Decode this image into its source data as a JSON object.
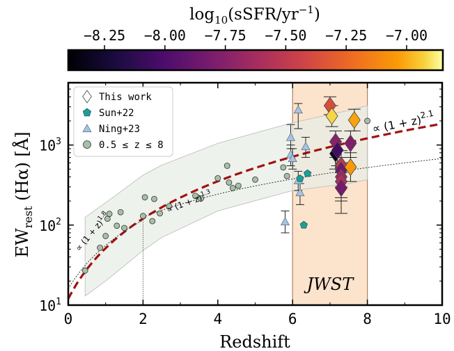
{
  "chart_data": {
    "type": "scatter",
    "xlabel": "Redshift",
    "ylabel": "EW",
    "ylabel_sub": "rest",
    "ylabel_tail": " (Hα) [Å]",
    "xlim": [
      0,
      10
    ],
    "ylim": [
      10,
      6000
    ],
    "yscale": "log",
    "x_ticks": [
      0,
      2,
      4,
      6,
      8,
      10
    ],
    "y_ticks": [
      {
        "base": "10",
        "exp": "1",
        "value": 10
      },
      {
        "base": "10",
        "exp": "2",
        "value": 100
      },
      {
        "base": "10",
        "exp": "3",
        "value": 1000
      }
    ],
    "colorbar": {
      "label_prefix": "log",
      "label_sub": "10",
      "label_mid": "(sSFR/yr",
      "label_sup": "−1",
      "label_end": ")",
      "ticks": [
        "−8.25",
        "−8.00",
        "−7.75",
        "−7.50",
        "−7.25",
        "−7.00"
      ],
      "range": [
        -8.4,
        -6.85
      ]
    },
    "jwst_band": {
      "x": [
        6,
        8
      ],
      "label": "JWST",
      "color": "#fbe3cc"
    },
    "legend": {
      "placement": "top-left",
      "entries": [
        "This work",
        "Sun+22",
        "Ning+23",
        "0.5 ≤ z ≤ 8"
      ]
    },
    "curves": [
      {
        "name": "∝ (1 + z)^2.1",
        "label_base": "∝ (1 + z)",
        "label_exp": "2.1",
        "coef": 12.0,
        "power": 2.1,
        "color": "#a30f0f",
        "style": "dashed-thick"
      },
      {
        "name": "∝ (1 + z)^1.3",
        "label_base": "∝ (1 + z)",
        "label_exp": "1.3",
        "coef": 30.0,
        "power": 1.3,
        "z_from": 2.0,
        "color": "#333333",
        "style": "dotted"
      },
      {
        "name": "∝ (1 + z)^1.8",
        "label_base": "∝ (1 + z)",
        "label_exp": "1.8",
        "coef": 16.0,
        "power": 1.8,
        "z_to": 2.0,
        "color": "#333333",
        "style": "dotted"
      }
    ],
    "envelope": {
      "x": [
        0.45,
        1.0,
        2.0,
        2.5,
        4.0,
        6.0,
        7.5,
        8.0
      ],
      "upper": [
        125,
        190,
        420,
        560,
        1050,
        1900,
        2700,
        3100
      ],
      "lower": [
        13,
        20,
        48,
        70,
        150,
        270,
        330,
        370
      ]
    },
    "series": [
      {
        "name": "0.5 ≤ z ≤ 8",
        "marker": "circle",
        "color": "#a7bfa8",
        "points": [
          {
            "x": 0.45,
            "y": 27
          },
          {
            "x": 0.85,
            "y": 52
          },
          {
            "x": 1.0,
            "y": 73
          },
          {
            "x": 1.05,
            "y": 120
          },
          {
            "x": 1.1,
            "y": 138
          },
          {
            "x": 1.3,
            "y": 98
          },
          {
            "x": 1.4,
            "y": 145
          },
          {
            "x": 1.5,
            "y": 92
          },
          {
            "x": 2.0,
            "y": 130
          },
          {
            "x": 2.05,
            "y": 222
          },
          {
            "x": 2.25,
            "y": 112
          },
          {
            "x": 2.3,
            "y": 212
          },
          {
            "x": 2.45,
            "y": 140
          },
          {
            "x": 2.7,
            "y": 172
          },
          {
            "x": 3.4,
            "y": 232
          },
          {
            "x": 3.55,
            "y": 215
          },
          {
            "x": 4.0,
            "y": 385
          },
          {
            "x": 4.25,
            "y": 550
          },
          {
            "x": 4.3,
            "y": 340
          },
          {
            "x": 4.4,
            "y": 290
          },
          {
            "x": 4.55,
            "y": 310
          },
          {
            "x": 5.0,
            "y": 370
          },
          {
            "x": 5.75,
            "y": 525
          },
          {
            "x": 5.85,
            "y": 410
          },
          {
            "x": 8.0,
            "y": 2000
          }
        ]
      },
      {
        "name": "Ning+23",
        "marker": "triangle",
        "color": "#a3c4e8",
        "points": [
          {
            "x": 5.8,
            "y": 110,
            "yerr": [
              80,
              150
            ]
          },
          {
            "x": 5.95,
            "y": 1250,
            "yerr": [
              900,
              1800
            ]
          },
          {
            "x": 5.95,
            "y": 760,
            "yerr": [
              550,
              1000
            ]
          },
          {
            "x": 6.0,
            "y": 680,
            "yerr": [
              500,
              900
            ]
          },
          {
            "x": 6.15,
            "y": 2750,
            "yerr": [
              1600,
              3300
            ]
          },
          {
            "x": 6.15,
            "y": 360,
            "yerr": [
              270,
              470
            ]
          },
          {
            "x": 6.2,
            "y": 255,
            "yerr": [
              180,
              330
            ]
          },
          {
            "x": 6.35,
            "y": 960,
            "yerr": [
              700,
              1250
            ]
          }
        ]
      },
      {
        "name": "Sun+22",
        "marker": "pentagon",
        "color": "#15a29a",
        "points": [
          {
            "x": 6.2,
            "y": 380
          },
          {
            "x": 6.3,
            "y": 100
          },
          {
            "x": 6.4,
            "y": 440
          }
        ]
      },
      {
        "name": "This work",
        "marker": "diamond",
        "points": [
          {
            "x": 7.0,
            "y": 3100,
            "ssfr": -7.38,
            "yerr": [
              2400,
              4000
            ]
          },
          {
            "x": 7.05,
            "y": 2300,
            "ssfr": -6.92,
            "yerr": [
              1700,
              3100
            ]
          },
          {
            "x": 7.15,
            "y": 1100,
            "ssfr": -7.75,
            "yerr": [
              700,
              1500
            ]
          },
          {
            "x": 7.15,
            "y": 780,
            "ssfr": -8.3,
            "yerr": [
              500,
              1100
            ]
          },
          {
            "x": 7.2,
            "y": 860,
            "ssfr": -8.05,
            "yerr": [
              550,
              1200
            ]
          },
          {
            "x": 7.3,
            "y": 560,
            "ssfr": -7.52,
            "yerr": [
              350,
              850
            ]
          },
          {
            "x": 7.3,
            "y": 480,
            "ssfr": -7.85,
            "yerr": [
              300,
              700
            ]
          },
          {
            "x": 7.3,
            "y": 400,
            "ssfr": -7.65,
            "yerr": [
              220,
              600
            ]
          },
          {
            "x": 7.3,
            "y": 350,
            "ssfr": -7.6,
            "yerr": [
              200,
              520
            ]
          },
          {
            "x": 7.3,
            "y": 290,
            "ssfr": -7.82,
            "yerr": [
              140,
              450
            ]
          },
          {
            "x": 7.55,
            "y": 1050,
            "ssfr": -7.78,
            "yerr": [
              700,
              1500
            ]
          },
          {
            "x": 7.55,
            "y": 530,
            "ssfr": -7.05,
            "yerr": [
              350,
              800
            ]
          },
          {
            "x": 7.65,
            "y": 2050,
            "ssfr": -7.02,
            "yerr": [
              1500,
              2800
            ]
          }
        ]
      }
    ]
  }
}
